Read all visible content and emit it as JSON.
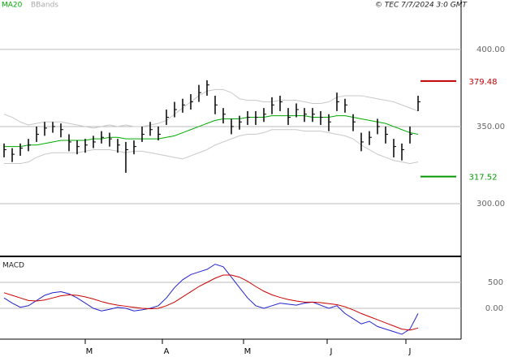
{
  "chart_data": {
    "type": "ohlc",
    "legend": [
      "MA20",
      "BBands"
    ],
    "copyright": "© TEC 7/7/2024 3:0 GMT",
    "xlim": [
      -0.5,
      56.3
    ],
    "xticks": [
      {
        "value": 10,
        "label": "M"
      },
      {
        "value": 19.5,
        "label": "A"
      },
      {
        "value": 29.5,
        "label": "M"
      },
      {
        "value": 39.8,
        "label": "J"
      },
      {
        "value": 49.5,
        "label": "J"
      }
    ],
    "ylim": [
      266.3,
      424.7
    ],
    "yticks": [
      {
        "value": 300,
        "label": "300.00"
      },
      {
        "value": 350,
        "label": "350.00"
      },
      {
        "value": 400,
        "label": "400.00"
      }
    ],
    "levels": [
      {
        "value": 379.48,
        "label": "379.48",
        "color": "#c00000"
      },
      {
        "value": 317.52,
        "label": "317.52",
        "color": "#009900"
      }
    ],
    "bar_color": "#000000",
    "high": [
      339,
      336,
      339,
      342,
      350,
      353,
      353,
      352,
      345,
      341,
      342,
      344,
      347,
      346,
      342,
      340,
      341,
      350,
      353,
      350,
      361,
      366,
      368,
      371,
      377,
      380,
      370,
      362,
      355,
      357,
      360,
      360,
      362,
      369,
      370,
      362,
      365,
      362,
      362,
      360,
      358,
      372,
      368,
      358,
      346,
      347,
      355,
      350,
      342,
      339,
      350,
      370
    ],
    "low": [
      330,
      327,
      331,
      334,
      340,
      344,
      346,
      343,
      334,
      332,
      333,
      336,
      339,
      337,
      333,
      320,
      332,
      340,
      344,
      341,
      351,
      356,
      359,
      361,
      366,
      370,
      358,
      352,
      345,
      348,
      351,
      351,
      353,
      358,
      360,
      351,
      356,
      353,
      353,
      351,
      347,
      360,
      359,
      347,
      334,
      338,
      345,
      339,
      330,
      328,
      339,
      360
    ],
    "close": [
      335,
      332,
      336,
      338,
      345,
      349,
      350,
      348,
      340,
      337,
      338,
      340,
      343,
      342,
      338,
      335,
      337,
      345,
      348,
      345,
      356,
      361,
      364,
      366,
      372,
      377,
      364,
      358,
      350,
      353,
      356,
      356,
      358,
      364,
      366,
      356,
      361,
      358,
      358,
      356,
      353,
      366,
      364,
      353,
      340,
      343,
      350,
      345,
      337,
      335,
      345,
      366
    ],
    "ma": {
      "color": "#00aa00",
      "values": [
        337,
        337,
        337,
        338,
        338,
        339,
        340,
        341,
        341,
        341,
        341,
        342,
        342,
        343,
        343,
        342,
        342,
        342,
        342,
        342,
        343,
        344,
        346,
        348,
        350,
        352,
        354,
        355,
        355,
        355,
        356,
        356,
        356,
        357,
        357,
        357,
        357,
        357,
        356,
        356,
        356,
        357,
        357,
        356,
        355,
        354,
        353,
        352,
        350,
        348,
        346,
        345
      ]
    },
    "bands": {
      "color": "#c8c8c8",
      "upper": [
        358,
        356,
        353,
        351,
        352,
        353,
        353,
        353,
        352,
        351,
        350,
        349,
        350,
        351,
        350,
        351,
        350,
        350,
        351,
        352,
        354,
        358,
        362,
        366,
        370,
        373,
        374,
        374,
        372,
        368,
        367,
        367,
        366,
        366,
        367,
        367,
        367,
        366,
        365,
        365,
        366,
        369,
        370,
        370,
        370,
        369,
        368,
        367,
        366,
        364,
        362,
        360
      ],
      "lower": [
        326,
        326,
        326,
        327,
        330,
        332,
        333,
        333,
        333,
        333,
        334,
        335,
        335,
        335,
        334,
        333,
        334,
        334,
        333,
        332,
        331,
        330,
        329,
        331,
        333,
        335,
        338,
        340,
        342,
        344,
        345,
        345,
        346,
        348,
        348,
        348,
        348,
        347,
        347,
        347,
        346,
        345,
        344,
        342,
        338,
        335,
        332,
        330,
        328,
        327,
        326,
        327
      ]
    },
    "macd": {
      "title": "MACD",
      "ylim": [
        -594,
        969
      ],
      "yticks": [
        {
          "value": 0,
          "label": "0.00"
        },
        500
      ],
      "series": [
        {
          "color": "#2222cc",
          "values": [
            200,
            100,
            20,
            50,
            150,
            250,
            300,
            320,
            280,
            200,
            100,
            0,
            -50,
            -20,
            20,
            0,
            -50,
            -30,
            0,
            50,
            200,
            400,
            550,
            650,
            700,
            750,
            850,
            800,
            600,
            400,
            200,
            50,
            0,
            50,
            100,
            80,
            60,
            100,
            120,
            60,
            0,
            50,
            -100,
            -200,
            -300,
            -250,
            -350,
            -400,
            -450,
            -500,
            -400,
            -100
          ]
        },
        {
          "color": "#cc0000",
          "values": [
            300,
            250,
            200,
            150,
            140,
            160,
            200,
            240,
            260,
            250,
            220,
            180,
            130,
            90,
            60,
            40,
            20,
            0,
            -10,
            0,
            50,
            120,
            220,
            320,
            420,
            500,
            580,
            640,
            640,
            600,
            520,
            420,
            330,
            260,
            210,
            170,
            140,
            120,
            120,
            110,
            90,
            70,
            30,
            -30,
            -100,
            -160,
            -220,
            -280,
            -340,
            -400,
            -420,
            -380
          ]
        }
      ]
    }
  }
}
